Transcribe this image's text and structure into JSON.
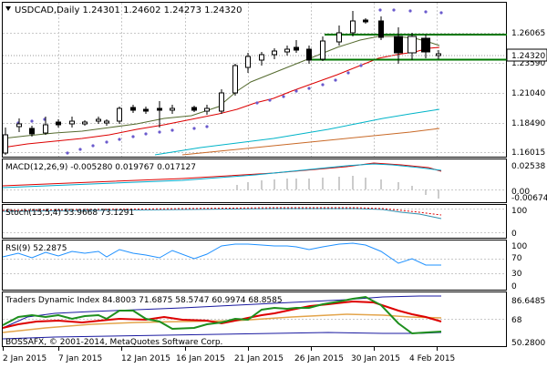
{
  "main": {
    "header": "USDCAD,Daily  1.24301 1.24602 1.24273 1.24320",
    "price_tag": "1.24320",
    "y_ticks": [
      "1.26065",
      "1.23590",
      "1.21040",
      "1.18490",
      "1.16015"
    ],
    "colors": {
      "bull": "#ffffff",
      "bear": "#000000",
      "sma_fast": "#dd0000",
      "sma_mid": "#556b2f",
      "sma_slow": "#00b4c8",
      "sma_long": "#c96a28",
      "psar": "#6a5acd",
      "level": "#007700"
    }
  },
  "macd": {
    "label": "MACD(12,26,9) -0.005280 0.019767 0.017127",
    "y_ticks": [
      "0.02538",
      "0.00",
      "-0.00674"
    ]
  },
  "stoch": {
    "label": "Stoch(15,5,4) 53.9668 73.1291",
    "y_ticks": [
      "100",
      "0"
    ]
  },
  "rsi": {
    "label": "RSI(9) 52.2875",
    "y_ticks": [
      "100",
      "70",
      "30",
      "0"
    ]
  },
  "tdi": {
    "label": "Traders Dynamic Index 84.8003 71.6875 58.5747 60.9974 68.8585",
    "y_ticks": [
      "86.6485",
      "68",
      "50.2800"
    ]
  },
  "copyright": "BOSSAFX, © 2001-2014, MetaQuotes Software Corp.",
  "x_labels": [
    "2 Jan 2015",
    "7 Jan 2015",
    "12 Jan 2015",
    "16 Jan 2015",
    "21 Jan 2015",
    "26 Jan 2015",
    "30 Jan 2015",
    "4 Feb 2015"
  ]
}
